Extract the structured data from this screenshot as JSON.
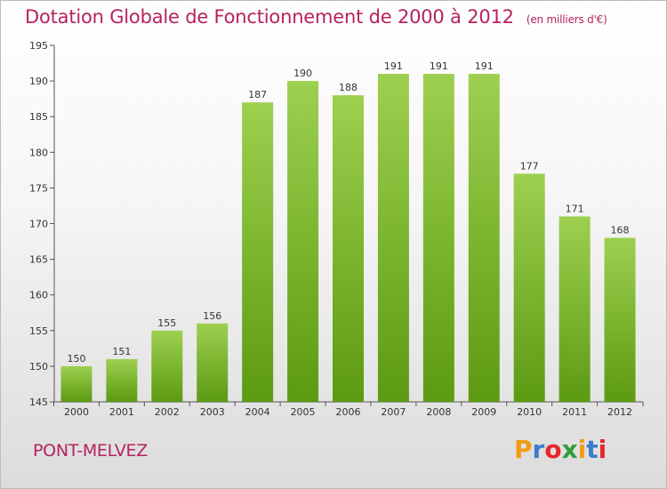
{
  "header": {
    "title": "Dotation Globale de Fonctionnement de 2000 à 2012",
    "unit": "(en milliers d'€)"
  },
  "footer": {
    "commune": "PONT-MELVEZ",
    "logo": "Proxiti",
    "logo_colors": [
      "#f39c12",
      "#3a7dc9",
      "#e8262b",
      "#2e9e3f",
      "#f39c12",
      "#3a7dc9",
      "#e8262b"
    ]
  },
  "chart_data": {
    "type": "bar",
    "categories": [
      "2000",
      "2001",
      "2002",
      "2003",
      "2004",
      "2005",
      "2006",
      "2007",
      "2008",
      "2009",
      "2010",
      "2011",
      "2012"
    ],
    "values": [
      150,
      151,
      155,
      156,
      187,
      190,
      188,
      191,
      191,
      191,
      177,
      171,
      168
    ],
    "ylim": [
      145,
      195
    ],
    "yticks": [
      145,
      150,
      155,
      160,
      165,
      170,
      175,
      180,
      185,
      190,
      195
    ],
    "bar_color_top": "#9dd04f",
    "bar_color_bottom": "#5c9a12",
    "grid": false,
    "legend": "none"
  }
}
